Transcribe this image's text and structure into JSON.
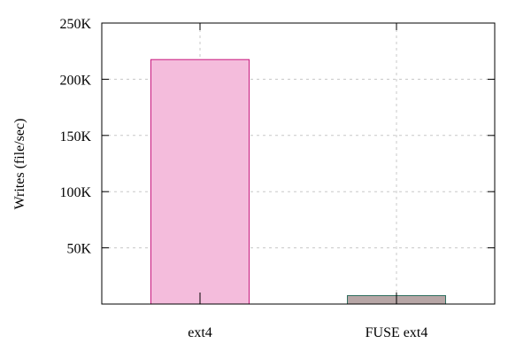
{
  "chart_data": {
    "type": "bar",
    "categories": [
      "ext4",
      "FUSE ext4"
    ],
    "values": [
      217500,
      7500
    ],
    "title": "",
    "xlabel": "",
    "ylabel": "Writes (file/sec)",
    "ylim": [
      0,
      250000
    ],
    "yticks": [
      50000,
      100000,
      150000,
      200000,
      250000
    ],
    "ytick_labels": [
      "50K",
      "100K",
      "150K",
      "200K",
      "250K"
    ],
    "grid": true,
    "legend": "none",
    "bar_colors": [
      {
        "fill": "#f4bcdc",
        "stroke": "#c8197e"
      },
      {
        "fill": "#b7a6a6",
        "stroke": "#2f6f5f"
      }
    ],
    "axis_color": "#000000",
    "grid_color": "#c8c8c8"
  }
}
